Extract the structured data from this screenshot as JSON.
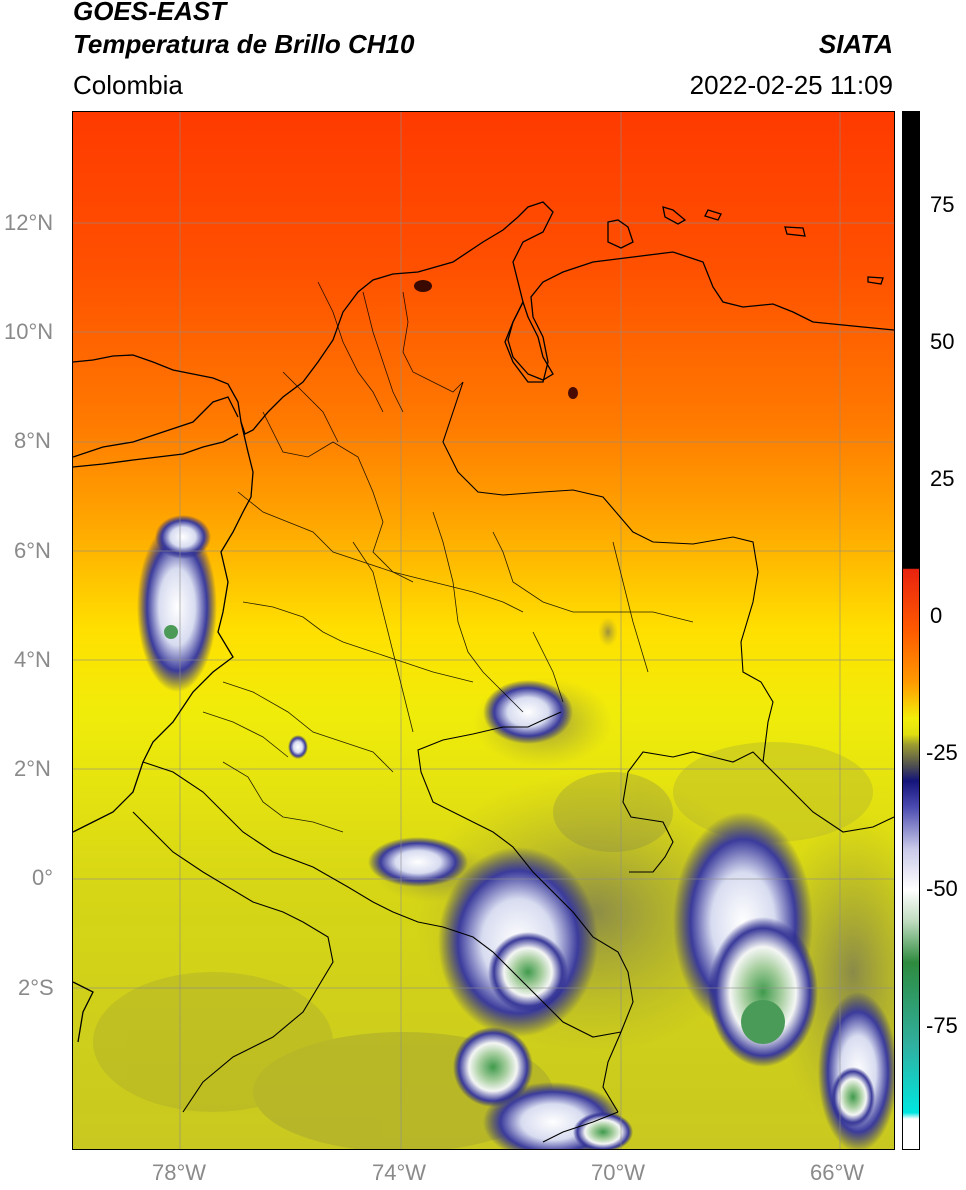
{
  "header": {
    "title_line1": "GOES-EAST",
    "title_line2": "Temperatura de Brillo CH10",
    "region": "Colombia",
    "source": "SIATA",
    "datetime": "2022-02-25 11:09"
  },
  "map": {
    "lat_labels": [
      "12°N",
      "10°N",
      "8°N",
      "6°N",
      "4°N",
      "2°N",
      "0°",
      "2°S"
    ],
    "lon_labels": [
      "78°W",
      "74°W",
      "70°W",
      "66°W"
    ],
    "gridlines": true
  },
  "colorbar": {
    "ticks": [
      "75",
      "50",
      "25",
      "0",
      "-25",
      "-50",
      "-75"
    ],
    "colors": {
      "black": "#000000",
      "red": "#e8230f",
      "orange": "#ff8a00",
      "yellow": "#f2ee0a",
      "olive": "#9c9c30",
      "navy": "#14147a",
      "white": "#ffffff",
      "green": "#2e8b3e",
      "cyan": "#00e6e0"
    }
  }
}
